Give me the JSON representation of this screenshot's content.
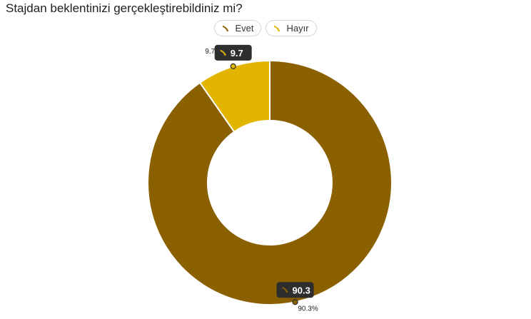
{
  "title": "Stajdan beklentinizi gerçekleştirebildiniz mi?",
  "legend": [
    {
      "label": "Evet",
      "color": "#8a6000",
      "icon": "banana-icon"
    },
    {
      "label": "Hayır",
      "color": "#e2b500",
      "icon": "banana-icon"
    }
  ],
  "chart_data": {
    "type": "pie",
    "variant": "donut",
    "title": "Stajdan beklentinizi gerçekleştirebildiniz mi?",
    "slices": [
      {
        "label": "Evet",
        "value": 90.3,
        "percent_label": "90.3%",
        "tooltip": "90.3",
        "color": "#8a6000"
      },
      {
        "label": "Hayır",
        "value": 9.7,
        "percent_label": "9.7%",
        "tooltip": "9.7",
        "color": "#e2b500"
      }
    ],
    "legend_position": "top-center",
    "start": "12 o'clock",
    "direction": "clockwise"
  }
}
